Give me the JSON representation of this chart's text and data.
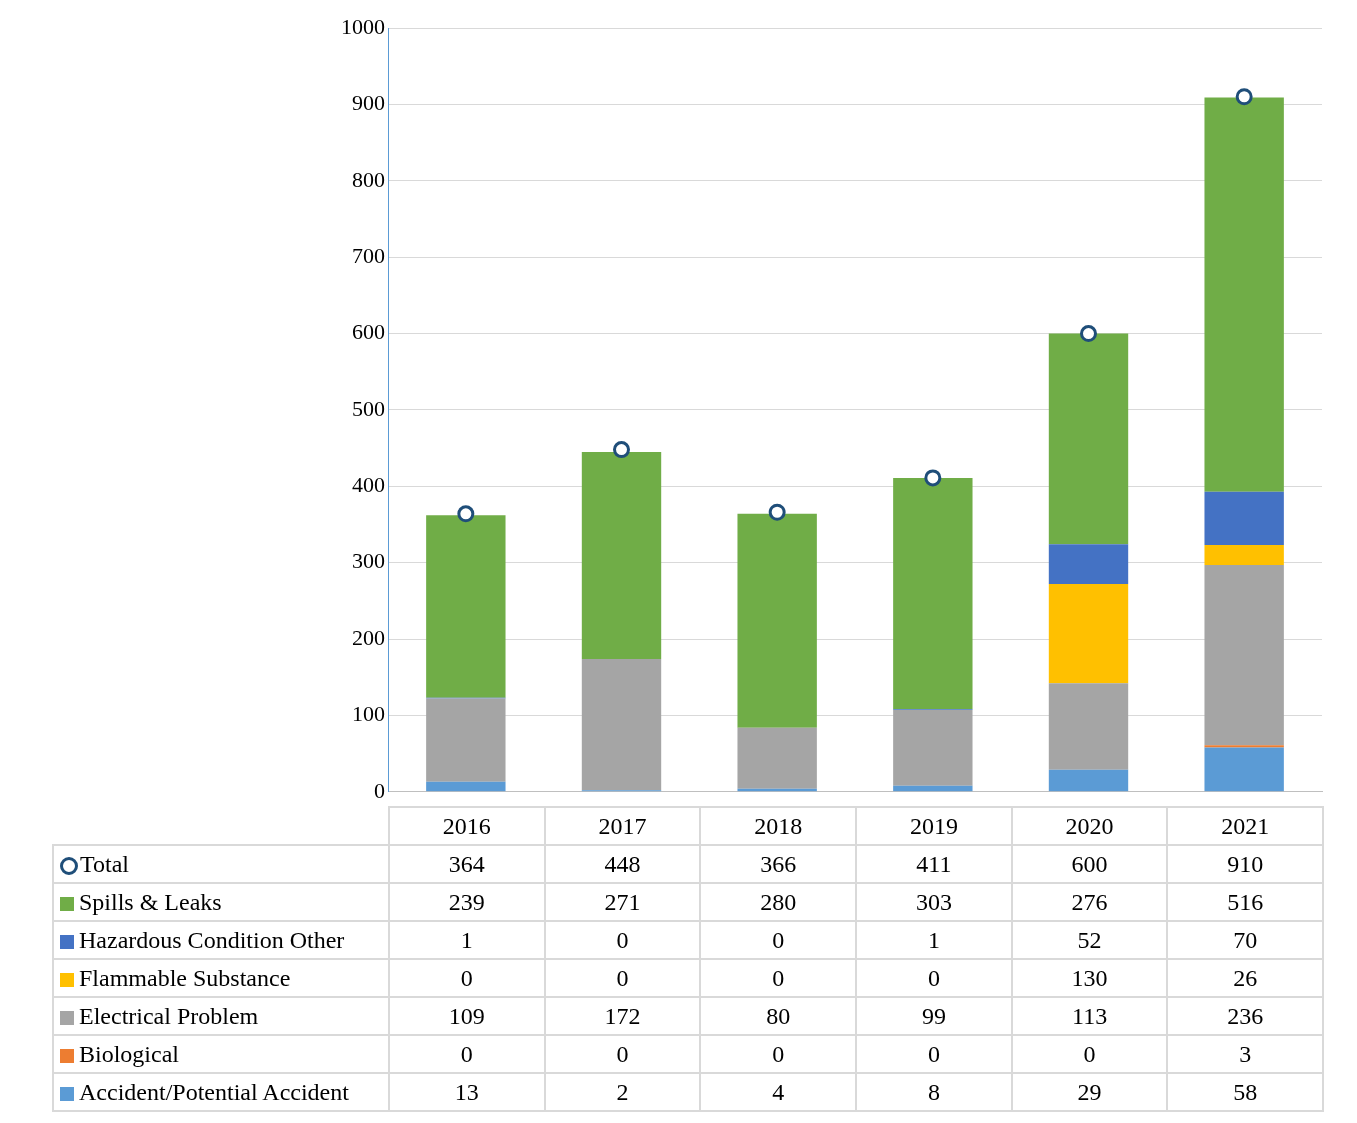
{
  "chart_data": {
    "type": "bar",
    "stacked": true,
    "categories": [
      "2016",
      "2017",
      "2018",
      "2019",
      "2020",
      "2021"
    ],
    "series": [
      {
        "name": "Accident/Potential Accident",
        "color": "#5b9bd5",
        "values": [
          13,
          2,
          4,
          8,
          29,
          58
        ]
      },
      {
        "name": "Biological",
        "color": "#ed7d31",
        "values": [
          0,
          0,
          0,
          0,
          0,
          3
        ]
      },
      {
        "name": "Electrical Problem",
        "color": "#a5a5a5",
        "values": [
          109,
          172,
          80,
          99,
          113,
          236
        ]
      },
      {
        "name": "Flammable Substance",
        "color": "#ffc000",
        "values": [
          0,
          0,
          0,
          0,
          130,
          26
        ]
      },
      {
        "name": "Hazardous Condition Other",
        "color": "#4472c4",
        "values": [
          1,
          0,
          0,
          1,
          52,
          70
        ]
      },
      {
        "name": "Spills & Leaks",
        "color": "#70ad47",
        "values": [
          239,
          271,
          280,
          303,
          276,
          516
        ]
      },
      {
        "name": "Total",
        "type": "scatter",
        "color": "#1f4e79",
        "marker": "circle",
        "values": [
          364,
          448,
          366,
          411,
          600,
          910
        ]
      }
    ],
    "ylim": [
      0,
      1000
    ],
    "yticks": [
      0,
      100,
      200,
      300,
      400,
      500,
      600,
      700,
      800,
      900,
      1000
    ],
    "grid": "y",
    "legend": "bottom",
    "data_labels": true
  }
}
